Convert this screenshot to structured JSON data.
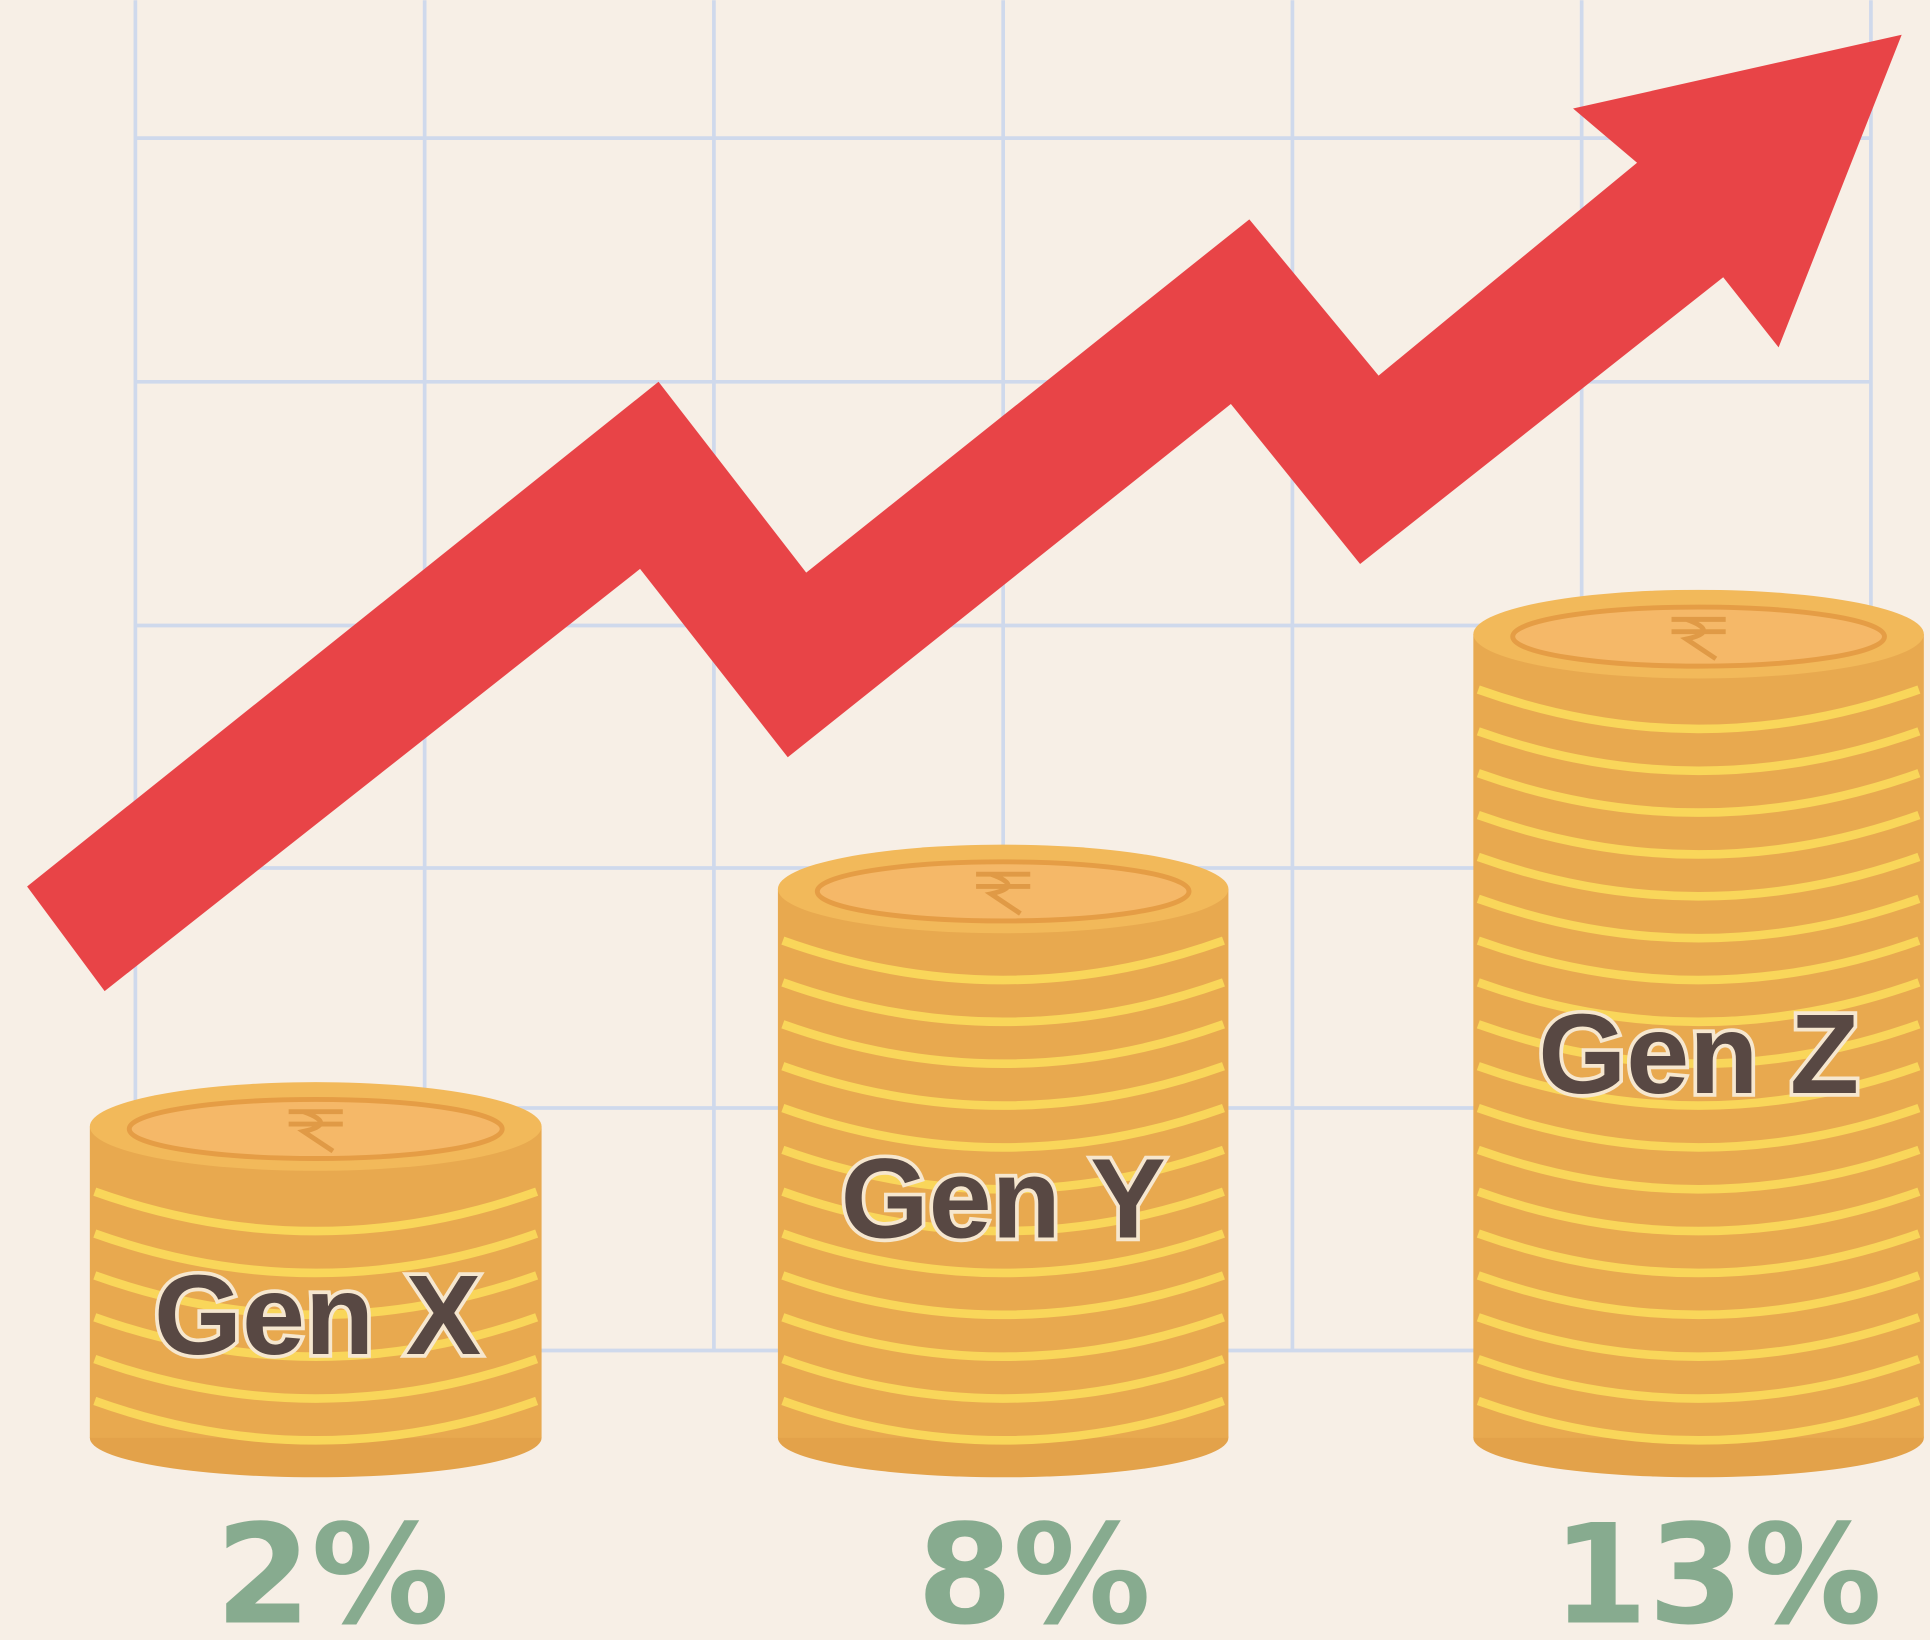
{
  "items": [
    {
      "label": "Gen X",
      "share": "2%"
    },
    {
      "label": "Gen Y",
      "share": "8%"
    },
    {
      "label": "Gen Z",
      "share": "13%"
    }
  ]
}
